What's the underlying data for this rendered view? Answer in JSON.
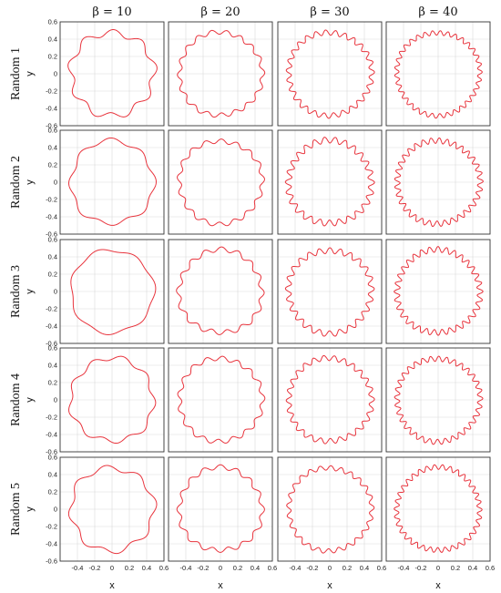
{
  "chart_data": {
    "type": "line",
    "description_layout": "5x4 grid of closed curves in x-y plane",
    "column_labels": [
      "β = 10",
      "β = 20",
      "β = 30",
      "β = 40"
    ],
    "row_labels": [
      "Random 1",
      "Random 2",
      "Random 3",
      "Random 4",
      "Random 5"
    ],
    "xlabel": "x",
    "ylabel": "y",
    "xlim": [
      -0.6,
      0.6
    ],
    "ylim": [
      -0.6,
      0.6
    ],
    "x_ticks": [
      "-0.4",
      "-0.2",
      "0",
      "0.2",
      "0.4",
      "0.6"
    ],
    "y_ticks": [
      "0.6",
      "0.4",
      "0.2",
      "0",
      "-0.2",
      "-0.4",
      "-0.6"
    ],
    "grid": true,
    "line_color": "#e8333c",
    "base_radius": 0.48,
    "curves": [
      [
        {
          "beta": 10,
          "amp": 0.038,
          "lobes": 9,
          "phase": 0.3
        },
        {
          "beta": 20,
          "amp": 0.025,
          "lobes": 18,
          "phase": 1.1
        },
        {
          "beta": 30,
          "amp": 0.03,
          "lobes": 27,
          "phase": 0.6
        },
        {
          "beta": 40,
          "amp": 0.026,
          "lobes": 34,
          "phase": 0.2
        }
      ],
      [
        {
          "beta": 10,
          "amp": 0.025,
          "lobes": 8,
          "phase": 1.4
        },
        {
          "beta": 20,
          "amp": 0.025,
          "lobes": 17,
          "phase": 0.4
        },
        {
          "beta": 30,
          "amp": 0.035,
          "lobes": 26,
          "phase": 1.7
        },
        {
          "beta": 40,
          "amp": 0.032,
          "lobes": 33,
          "phase": 0.9
        }
      ],
      [
        {
          "beta": 10,
          "amp": 0.018,
          "lobes": 7,
          "phase": 0.8
        },
        {
          "beta": 20,
          "amp": 0.027,
          "lobes": 16,
          "phase": 2.0
        },
        {
          "beta": 30,
          "amp": 0.033,
          "lobes": 25,
          "phase": 0.1
        },
        {
          "beta": 40,
          "amp": 0.033,
          "lobes": 32,
          "phase": 1.5
        }
      ],
      [
        {
          "beta": 10,
          "amp": 0.028,
          "lobes": 9,
          "phase": 2.2
        },
        {
          "beta": 20,
          "amp": 0.026,
          "lobes": 17,
          "phase": 0.9
        },
        {
          "beta": 30,
          "amp": 0.03,
          "lobes": 26,
          "phase": 1.2
        },
        {
          "beta": 40,
          "amp": 0.03,
          "lobes": 33,
          "phase": 0.5
        }
      ],
      [
        {
          "beta": 10,
          "amp": 0.032,
          "lobes": 8,
          "phase": 0.5
        },
        {
          "beta": 20,
          "amp": 0.026,
          "lobes": 16,
          "phase": 1.6
        },
        {
          "beta": 30,
          "amp": 0.026,
          "lobes": 25,
          "phase": 0.7
        },
        {
          "beta": 40,
          "amp": 0.028,
          "lobes": 34,
          "phase": 1.9
        }
      ]
    ]
  }
}
